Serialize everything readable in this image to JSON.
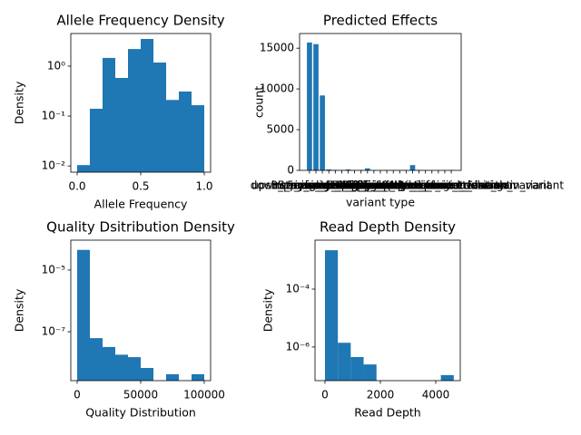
{
  "chart_data": [
    {
      "type": "histogram",
      "title": "Allele Frequency Density",
      "xlabel": "Allele Frequency",
      "ylabel": "Density",
      "bins": [
        0,
        0.1,
        0.2,
        0.3,
        0.4,
        0.5,
        0.6,
        0.7,
        0.8,
        0.9,
        1.0
      ],
      "values": [
        0.0104,
        0.14,
        1.46,
        0.58,
        2.2,
        3.5,
        1.18,
        0.21,
        0.31,
        0.165
      ],
      "color": "#1f77b4",
      "xlim": [
        -0.05,
        1.05
      ],
      "ylim": [
        0.0075,
        4.5
      ],
      "yscale": "log",
      "xticks": [
        {
          "value": 0,
          "label": "0.0"
        },
        0.5,
        {
          "value": 1,
          "label": "1.0"
        }
      ],
      "yticks": [
        {
          "value": 0.01,
          "label": "10⁻²"
        },
        {
          "value": 0.1,
          "label": "10⁻¹"
        },
        {
          "value": 1,
          "label": "10⁰"
        }
      ]
    },
    {
      "type": "bar",
      "title": "Predicted Effects",
      "xlabel": "variant type",
      "ylabel": "count",
      "categories": [
        "intron_variant",
        "upstream_gene_variant",
        "downstream_gene_variant",
        "3_prime_UTR_variant",
        "5_prime_UTR_variant",
        "missense_variant",
        "synonymous_variant",
        "frameshift_variant",
        "splice_region_variant",
        "stop_gained",
        "stop_lost",
        "start_lost",
        "inframe_insertion",
        "inframe_deletion",
        "splice_acceptor_variant",
        "splice_donor_variant",
        "non_coding_transcript_exon_variant",
        "intergenic_region",
        "5_prime_UTR_premature_start_codon_gain_variant",
        "disruptive_inframe_deletion",
        "disruptive_inframe_insertion",
        "stop_retained_variant",
        "splice_region_variant&intron_variant"
      ],
      "values": [
        15700,
        15500,
        9200,
        120,
        60,
        40,
        110,
        30,
        50,
        250,
        20,
        15,
        30,
        40,
        20,
        30,
        650,
        60,
        20,
        10,
        10,
        15,
        40
      ],
      "color": "#1f77b4",
      "ylim": [
        0,
        16800
      ],
      "yticks": [
        0,
        5000,
        10000,
        15000
      ]
    },
    {
      "type": "histogram",
      "title": "Quality Dsitribution Density",
      "xlabel": "Quality Distribution",
      "ylabel": "Density",
      "bins": [
        0,
        10000,
        20000,
        30000,
        40000,
        50000,
        60000,
        70000,
        80000,
        90000,
        100000
      ],
      "values": [
        4.5e-05,
        6.2e-08,
        3.2e-08,
        1.8e-08,
        1.5e-08,
        6.7e-09,
        0,
        4.2e-09,
        0,
        4.2e-09
      ],
      "color": "#1f77b4",
      "xlim": [
        -5000,
        105000
      ],
      "ylim": [
        2.6e-09,
        9.3e-05
      ],
      "yscale": "log",
      "xticks": [
        0,
        50000,
        100000
      ],
      "yticks": [
        {
          "value": 1e-07,
          "label": "10⁻⁷"
        },
        {
          "value": 1e-05,
          "label": "10⁻⁵"
        }
      ]
    },
    {
      "type": "histogram",
      "title": "Read Depth Density",
      "xlabel": "Read Depth",
      "ylabel": "Density",
      "bins": [
        0,
        465,
        930,
        1395,
        1860,
        2325,
        2790,
        3255,
        3720,
        4185,
        4650
      ],
      "values": [
        0.0022,
        1.4e-06,
        4.5e-07,
        2.5e-07,
        0,
        0,
        0,
        0,
        0,
        1.07e-07
      ],
      "color": "#1f77b4",
      "xlim": [
        -360,
        4885
      ],
      "ylim": [
        6.9e-08,
        0.0049
      ],
      "yscale": "log",
      "xticks": [
        0,
        2000,
        4000
      ],
      "yticks": [
        {
          "value": 1e-06,
          "label": "10⁻⁶"
        },
        {
          "value": 0.0001,
          "label": "10⁻⁴"
        }
      ]
    }
  ]
}
